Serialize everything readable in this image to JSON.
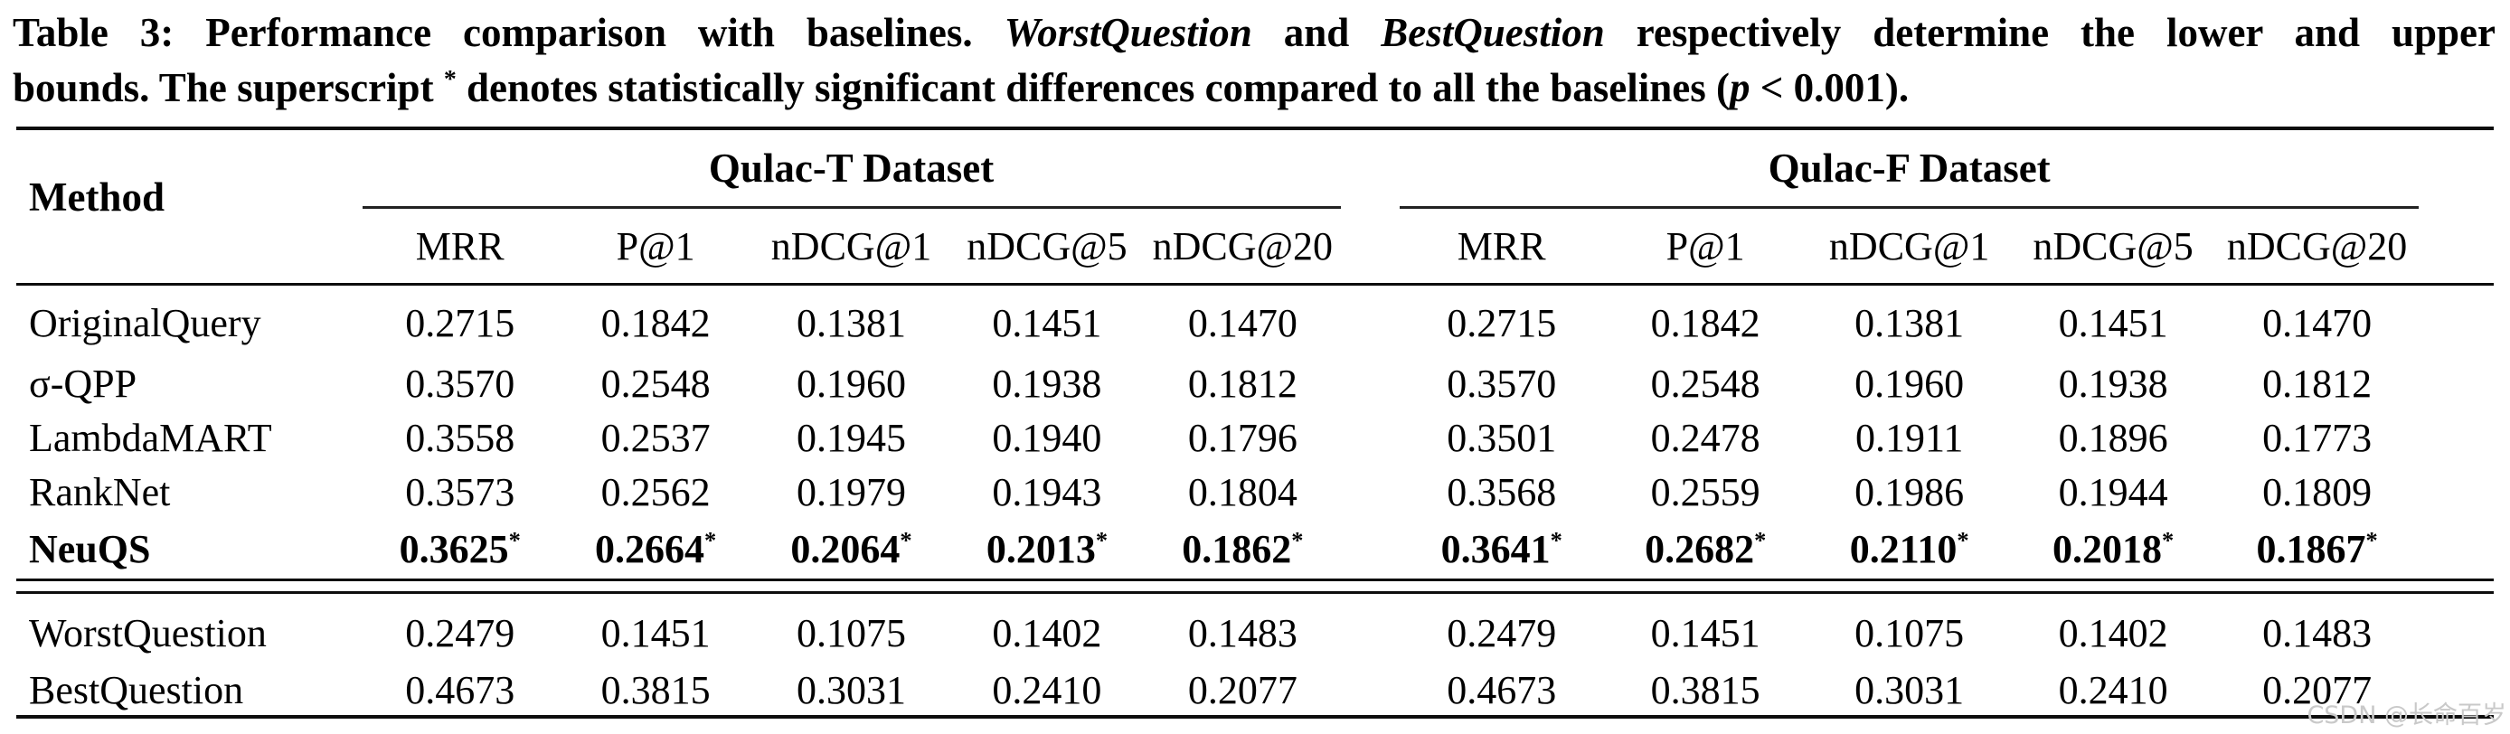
{
  "caption": {
    "lines": [
      {
        "segments": [
          {
            "text": "Table 3: Performance comparison with baselines. ",
            "style": "bold"
          },
          {
            "text": "WorstQuestion",
            "style": "bold-italic"
          },
          {
            "text": " and ",
            "style": "bold"
          },
          {
            "text": "BestQuestion",
            "style": "bold-italic"
          },
          {
            "text": " respectively determine the lower and upper",
            "style": "bold"
          }
        ]
      },
      {
        "segments": [
          {
            "text": "bounds. The superscript ",
            "style": "bold"
          },
          {
            "text": "*",
            "style": "bold-sup"
          },
          {
            "text": " denotes statistically significant differences compared to all the baselines (",
            "style": "bold"
          },
          {
            "text": "p",
            "style": "bold-italic"
          },
          {
            "text": " < 0.001).",
            "style": "bold"
          }
        ]
      }
    ]
  },
  "table": {
    "method_header": "Method",
    "significance_marker": "*",
    "groups": [
      {
        "label": "Qulac-T Dataset",
        "columns": [
          "MRR",
          "P@1",
          "nDCG@1",
          "nDCG@5",
          "nDCG@20"
        ]
      },
      {
        "label": "Qulac-F Dataset",
        "columns": [
          "MRR",
          "P@1",
          "nDCG@1",
          "nDCG@5",
          "nDCG@20"
        ]
      }
    ],
    "rows": [
      {
        "method": "OriginalQuery",
        "significant": false,
        "values": [
          "0.2715",
          "0.1842",
          "0.1381",
          "0.1451",
          "0.1470",
          "0.2715",
          "0.1842",
          "0.1381",
          "0.1451",
          "0.1470"
        ]
      },
      {
        "method": "σ-QPP",
        "significant": false,
        "values": [
          "0.3570",
          "0.2548",
          "0.1960",
          "0.1938",
          "0.1812",
          "0.3570",
          "0.2548",
          "0.1960",
          "0.1938",
          "0.1812"
        ]
      },
      {
        "method": "LambdaMART",
        "significant": false,
        "values": [
          "0.3558",
          "0.2537",
          "0.1945",
          "0.1940",
          "0.1796",
          "0.3501",
          "0.2478",
          "0.1911",
          "0.1896",
          "0.1773"
        ]
      },
      {
        "method": "RankNet",
        "significant": false,
        "values": [
          "0.3573",
          "0.2562",
          "0.1979",
          "0.1943",
          "0.1804",
          "0.3568",
          "0.2559",
          "0.1986",
          "0.1944",
          "0.1809"
        ]
      },
      {
        "method": "NeuQS",
        "significant": true,
        "values": [
          "0.3625",
          "0.2664",
          "0.2064",
          "0.2013",
          "0.1862",
          "0.3641",
          "0.2682",
          "0.2110",
          "0.2018",
          "0.1867"
        ]
      }
    ],
    "bound_rows": [
      {
        "method": "WorstQuestion",
        "significant": false,
        "values": [
          "0.2479",
          "0.1451",
          "0.1075",
          "0.1402",
          "0.1483",
          "0.2479",
          "0.1451",
          "0.1075",
          "0.1402",
          "0.1483"
        ]
      },
      {
        "method": "BestQuestion",
        "significant": false,
        "values": [
          "0.4673",
          "0.3815",
          "0.3031",
          "0.2410",
          "0.2077",
          "0.4673",
          "0.3815",
          "0.3031",
          "0.2410",
          "0.2077"
        ]
      }
    ]
  },
  "watermark": "CSDN @长命百岁"
}
